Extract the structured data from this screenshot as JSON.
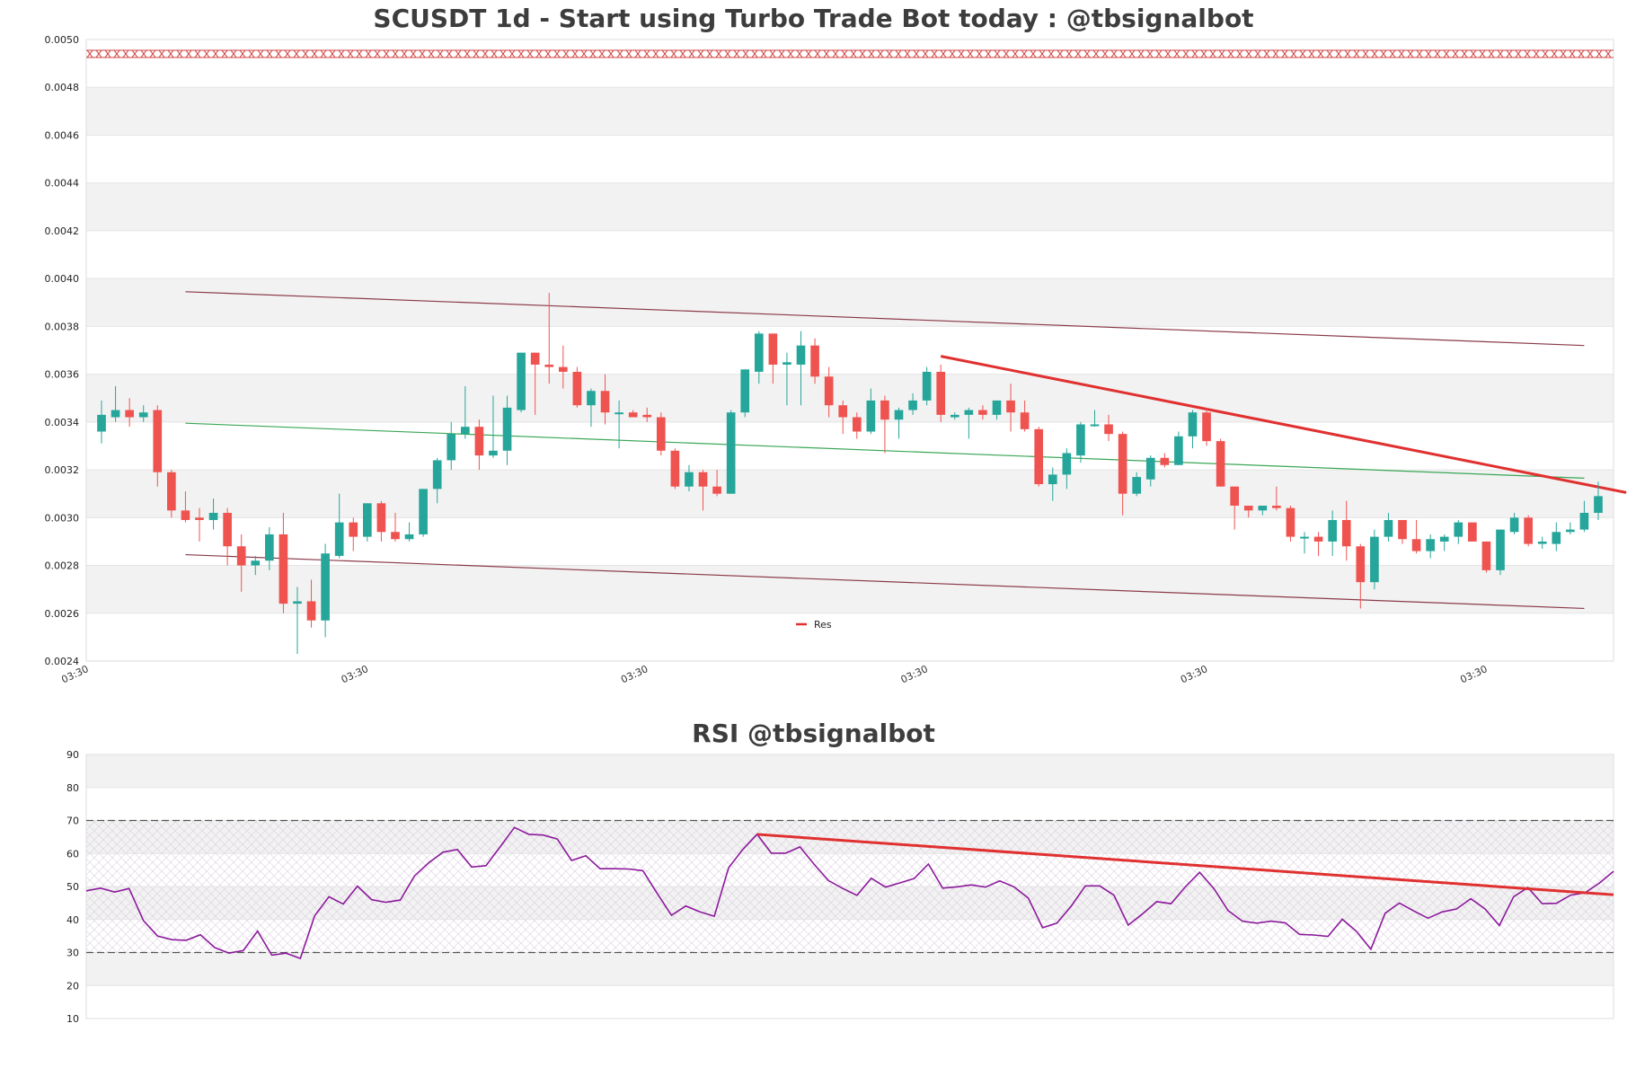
{
  "chart_data": [
    {
      "type": "candlestick",
      "title": "SCUSDT 1d - Start using Turbo Trade Bot today : @tbsignalbot",
      "ylim": [
        0.0024,
        0.005
      ],
      "yticks": [
        "0.0024",
        "0.0026",
        "0.0028",
        "0.0030",
        "0.0032",
        "0.0034",
        "0.0036",
        "0.0038",
        "0.0040",
        "0.0042",
        "0.0044",
        "0.0046",
        "0.0048",
        "0.0050"
      ],
      "xtick_labels": [
        "03:30",
        "03:30",
        "03:30",
        "03:30",
        "03:30",
        "03:30"
      ],
      "legend": [
        {
          "label": "Res",
          "color": "#e03030"
        }
      ],
      "colors": {
        "up": "#26a69a",
        "down": "#ef5350",
        "channel": "#8b3a4a",
        "mid": "#3aa655",
        "res": "#e03030",
        "band_marker": "#d04040"
      },
      "candles": [
        [
          0.00336,
          0.00349,
          0.00331,
          0.00343
        ],
        [
          0.00342,
          0.00355,
          0.0034,
          0.00345
        ],
        [
          0.00345,
          0.0035,
          0.00338,
          0.00342
        ],
        [
          0.00342,
          0.00347,
          0.0034,
          0.00344
        ],
        [
          0.00345,
          0.00347,
          0.00313,
          0.00319
        ],
        [
          0.00319,
          0.0032,
          0.003,
          0.00303
        ],
        [
          0.00303,
          0.00311,
          0.00298,
          0.00299
        ],
        [
          0.003,
          0.00304,
          0.0029,
          0.00299
        ],
        [
          0.00299,
          0.00308,
          0.00295,
          0.00302
        ],
        [
          0.00302,
          0.00304,
          0.0028,
          0.00288
        ],
        [
          0.00288,
          0.00293,
          0.00269,
          0.0028
        ],
        [
          0.0028,
          0.00284,
          0.00276,
          0.00282
        ],
        [
          0.00282,
          0.00296,
          0.00278,
          0.00293
        ],
        [
          0.00293,
          0.00302,
          0.0026,
          0.00264
        ],
        [
          0.00264,
          0.00271,
          0.00243,
          0.00265
        ],
        [
          0.00265,
          0.00274,
          0.00254,
          0.00257
        ],
        [
          0.00257,
          0.00289,
          0.0025,
          0.00285
        ],
        [
          0.00284,
          0.0031,
          0.00283,
          0.00298
        ],
        [
          0.00298,
          0.003,
          0.00286,
          0.00292
        ],
        [
          0.00292,
          0.00306,
          0.0029,
          0.00306
        ],
        [
          0.00306,
          0.00307,
          0.0029,
          0.00294
        ],
        [
          0.00294,
          0.00302,
          0.0029,
          0.00291
        ],
        [
          0.00291,
          0.00298,
          0.0029,
          0.00293
        ],
        [
          0.00293,
          0.00312,
          0.00292,
          0.00312
        ],
        [
          0.00312,
          0.00325,
          0.00306,
          0.00324
        ],
        [
          0.00324,
          0.0034,
          0.0032,
          0.00335
        ],
        [
          0.00335,
          0.00355,
          0.00333,
          0.00338
        ],
        [
          0.00338,
          0.00341,
          0.0032,
          0.00326
        ],
        [
          0.00326,
          0.00351,
          0.00325,
          0.00328
        ],
        [
          0.00328,
          0.00351,
          0.00322,
          0.00346
        ],
        [
          0.00345,
          0.00369,
          0.00344,
          0.00369
        ],
        [
          0.00369,
          0.00369,
          0.00343,
          0.00364
        ],
        [
          0.00364,
          0.00394,
          0.00356,
          0.00363
        ],
        [
          0.00363,
          0.00372,
          0.00354,
          0.00361
        ],
        [
          0.00361,
          0.00363,
          0.00346,
          0.00347
        ],
        [
          0.00347,
          0.00354,
          0.00338,
          0.00353
        ],
        [
          0.00353,
          0.0036,
          0.00339,
          0.00344
        ],
        [
          0.00344,
          0.00349,
          0.00329,
          0.00344
        ],
        [
          0.00344,
          0.00345,
          0.00342,
          0.00342
        ],
        [
          0.00343,
          0.00346,
          0.0034,
          0.00342
        ],
        [
          0.00342,
          0.00344,
          0.00326,
          0.00328
        ],
        [
          0.00328,
          0.00329,
          0.00312,
          0.00313
        ],
        [
          0.00313,
          0.00322,
          0.00311,
          0.00319
        ],
        [
          0.00319,
          0.0032,
          0.00303,
          0.00313
        ],
        [
          0.00313,
          0.0032,
          0.00309,
          0.0031
        ],
        [
          0.0031,
          0.00345,
          0.0031,
          0.00344
        ],
        [
          0.00344,
          0.00362,
          0.00342,
          0.00362
        ],
        [
          0.00361,
          0.00378,
          0.00356,
          0.00377
        ],
        [
          0.00377,
          0.00377,
          0.00356,
          0.00364
        ],
        [
          0.00364,
          0.00369,
          0.00347,
          0.00365
        ],
        [
          0.00364,
          0.00378,
          0.00347,
          0.00372
        ],
        [
          0.00372,
          0.00375,
          0.00356,
          0.00359
        ],
        [
          0.00359,
          0.00363,
          0.00342,
          0.00347
        ],
        [
          0.00347,
          0.00349,
          0.00335,
          0.00342
        ],
        [
          0.00342,
          0.00344,
          0.00333,
          0.00336
        ],
        [
          0.00336,
          0.00354,
          0.00335,
          0.00349
        ],
        [
          0.00349,
          0.00351,
          0.00327,
          0.00341
        ],
        [
          0.00341,
          0.00346,
          0.00333,
          0.00345
        ],
        [
          0.00345,
          0.00352,
          0.00343,
          0.00349
        ],
        [
          0.00349,
          0.00363,
          0.00347,
          0.00361
        ],
        [
          0.00361,
          0.00364,
          0.0034,
          0.00343
        ],
        [
          0.00342,
          0.00344,
          0.00341,
          0.00343
        ],
        [
          0.00343,
          0.00346,
          0.00333,
          0.00345
        ],
        [
          0.00345,
          0.00347,
          0.00341,
          0.00343
        ],
        [
          0.00343,
          0.00349,
          0.00341,
          0.00349
        ],
        [
          0.00349,
          0.00356,
          0.00336,
          0.00344
        ],
        [
          0.00344,
          0.00349,
          0.00336,
          0.00337
        ],
        [
          0.00337,
          0.00338,
          0.00313,
          0.00314
        ],
        [
          0.00314,
          0.00321,
          0.00307,
          0.00318
        ],
        [
          0.00318,
          0.00329,
          0.00312,
          0.00327
        ],
        [
          0.00326,
          0.0034,
          0.00323,
          0.00339
        ],
        [
          0.00339,
          0.00345,
          0.00338,
          0.00339
        ],
        [
          0.00339,
          0.00343,
          0.00332,
          0.00335
        ],
        [
          0.00335,
          0.00336,
          0.00301,
          0.0031
        ],
        [
          0.0031,
          0.00319,
          0.00309,
          0.00317
        ],
        [
          0.00316,
          0.00326,
          0.00313,
          0.00325
        ],
        [
          0.00325,
          0.00327,
          0.00321,
          0.00322
        ],
        [
          0.00322,
          0.00336,
          0.00322,
          0.00334
        ],
        [
          0.00334,
          0.00345,
          0.00329,
          0.00344
        ],
        [
          0.00344,
          0.00346,
          0.0033,
          0.00332
        ],
        [
          0.00332,
          0.00333,
          0.00313,
          0.00313
        ],
        [
          0.00313,
          0.00313,
          0.00295,
          0.00305
        ],
        [
          0.00305,
          0.00305,
          0.003,
          0.00303
        ],
        [
          0.00303,
          0.00305,
          0.00301,
          0.00305
        ],
        [
          0.00305,
          0.00313,
          0.00303,
          0.00304
        ],
        [
          0.00304,
          0.00305,
          0.0029,
          0.00292
        ],
        [
          0.00292,
          0.00294,
          0.00285,
          0.00292
        ],
        [
          0.00292,
          0.00294,
          0.00284,
          0.0029
        ],
        [
          0.0029,
          0.00303,
          0.00284,
          0.00299
        ],
        [
          0.00299,
          0.00307,
          0.00282,
          0.00288
        ],
        [
          0.00288,
          0.00289,
          0.00262,
          0.00273
        ],
        [
          0.00273,
          0.00295,
          0.0027,
          0.00292
        ],
        [
          0.00292,
          0.00302,
          0.0029,
          0.00299
        ],
        [
          0.00299,
          0.00299,
          0.00289,
          0.00291
        ],
        [
          0.00291,
          0.00299,
          0.00285,
          0.00286
        ],
        [
          0.00286,
          0.00293,
          0.00283,
          0.00291
        ],
        [
          0.0029,
          0.00293,
          0.00286,
          0.00292
        ],
        [
          0.00292,
          0.00299,
          0.00289,
          0.00298
        ],
        [
          0.00298,
          0.00298,
          0.0029,
          0.0029
        ],
        [
          0.0029,
          0.0029,
          0.00277,
          0.00278
        ],
        [
          0.00278,
          0.00295,
          0.00276,
          0.00295
        ],
        [
          0.00294,
          0.00302,
          0.00293,
          0.003
        ],
        [
          0.003,
          0.00301,
          0.00288,
          0.00289
        ],
        [
          0.00289,
          0.00292,
          0.00287,
          0.0029
        ],
        [
          0.00289,
          0.00298,
          0.00286,
          0.00294
        ],
        [
          0.00294,
          0.00298,
          0.00293,
          0.00295
        ],
        [
          0.00295,
          0.00307,
          0.00294,
          0.00302
        ],
        [
          0.00302,
          0.00315,
          0.00299,
          0.00309
        ]
      ]
    },
    {
      "type": "line",
      "title": "RSI @tbsignalbot",
      "ylim": [
        10,
        90
      ],
      "yticks": [
        10,
        20,
        30,
        40,
        50,
        60,
        70,
        80,
        90
      ],
      "overbought": 70,
      "oversold": 30,
      "colors": {
        "line": "#8b1a9b",
        "trend": "#e03030",
        "guides": "#555555"
      },
      "values": [
        48.7,
        49.5,
        48.3,
        49.4,
        39.7,
        35.0,
        33.9,
        33.7,
        35.4,
        31.5,
        29.8,
        30.6,
        36.5,
        29.2,
        29.8,
        28.2,
        41.1,
        46.9,
        44.7,
        50.1,
        46.0,
        45.2,
        45.9,
        53.2,
        57.2,
        60.4,
        61.2,
        55.9,
        56.3,
        62.0,
        67.9,
        65.8,
        65.6,
        64.4,
        57.9,
        59.3,
        55.4,
        55.4,
        55.3,
        54.8,
        47.9,
        41.3,
        44.1,
        42.3,
        41.0,
        55.7,
        61.2,
        65.8,
        60.1,
        60.1,
        62.0,
        56.7,
        51.8,
        49.4,
        47.3,
        52.5,
        49.8,
        51.1,
        52.4,
        56.8,
        49.5,
        49.9,
        50.5,
        49.8,
        51.7,
        49.9,
        46.5,
        37.5,
        38.9,
        44.0,
        50.2,
        50.2,
        47.4,
        38.3,
        41.7,
        45.4,
        44.8,
        49.9,
        54.3,
        49.4,
        42.7,
        39.5,
        38.9,
        39.5,
        39.0,
        35.5,
        35.3,
        34.9,
        40.1,
        36.4,
        31.0,
        41.9,
        45.0,
        42.6,
        40.4,
        42.3,
        43.2,
        46.3,
        43.2,
        38.2,
        46.9,
        49.7,
        44.8,
        44.9,
        47.4,
        48.1,
        51.0,
        54.6
      ]
    }
  ]
}
